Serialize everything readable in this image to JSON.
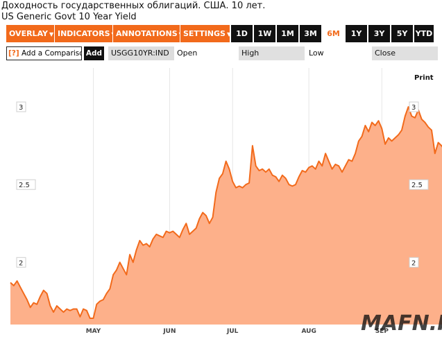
{
  "header": {
    "title_ru": "Доходность государственных облигаций. США. 10 лет.",
    "title_en": "US Generic Govt 10 Year Yield"
  },
  "toolbar": {
    "menus": [
      {
        "label": "OVERLAY",
        "arrow": "▼"
      },
      {
        "label": "INDICATORS",
        "arrow": "▼"
      },
      {
        "label": "ANNOTATIONS",
        "arrow": "▼"
      },
      {
        "label": "SETTINGS",
        "arrow": "▼"
      }
    ],
    "ranges": [
      "1D",
      "1W",
      "1M",
      "3M",
      "6M",
      "1Y",
      "3Y",
      "5Y",
      "YTD"
    ],
    "active_range": "6M"
  },
  "row2": {
    "compare_prefix": "[?]",
    "compare_label": "Add a Comparison",
    "add_label": "Add",
    "ticker": "USGG10YR:IND",
    "open_label": "Open",
    "high_label": "High",
    "low_label": "Low",
    "close_label": "Close"
  },
  "print_label": "Print",
  "watermark": "MAFN.RU",
  "colors": {
    "accent": "#f26a1b",
    "line": "#f26a1b",
    "fill": "#fdb08a"
  },
  "chart_data": {
    "type": "area",
    "title": "US Generic Govt 10 Year Yield",
    "xlabel": "",
    "ylabel": "",
    "ylim": [
      1.6,
      3.25
    ],
    "yticks": [
      2,
      2.5,
      3
    ],
    "ytick_labels": [
      "2",
      "2.5",
      "3"
    ],
    "xticks": [
      {
        "label": "MAY",
        "x": 25
      },
      {
        "label": "JUN",
        "x": 48
      },
      {
        "label": "JUL",
        "x": 67
      },
      {
        "label": "AUG",
        "x": 90
      },
      {
        "label": "SEP",
        "x": 112
      }
    ],
    "xlim": [
      0,
      127
    ],
    "grid": true,
    "y": [
      1.87,
      1.85,
      1.88,
      1.84,
      1.8,
      1.76,
      1.71,
      1.74,
      1.73,
      1.78,
      1.82,
      1.8,
      1.72,
      1.68,
      1.72,
      1.7,
      1.68,
      1.7,
      1.69,
      1.7,
      1.7,
      1.65,
      1.7,
      1.69,
      1.64,
      1.64,
      1.73,
      1.75,
      1.76,
      1.8,
      1.83,
      1.92,
      1.95,
      2.0,
      1.96,
      1.92,
      2.05,
      2.0,
      2.08,
      2.14,
      2.11,
      2.12,
      2.1,
      2.15,
      2.18,
      2.17,
      2.16,
      2.2,
      2.19,
      2.2,
      2.18,
      2.16,
      2.21,
      2.25,
      2.18,
      2.2,
      2.22,
      2.28,
      2.32,
      2.3,
      2.25,
      2.29,
      2.45,
      2.54,
      2.57,
      2.65,
      2.6,
      2.52,
      2.48,
      2.49,
      2.48,
      2.5,
      2.51,
      2.75,
      2.62,
      2.59,
      2.6,
      2.58,
      2.6,
      2.56,
      2.55,
      2.52,
      2.56,
      2.54,
      2.5,
      2.49,
      2.5,
      2.55,
      2.59,
      2.58,
      2.61,
      2.62,
      2.6,
      2.65,
      2.62,
      2.7,
      2.65,
      2.6,
      2.63,
      2.62,
      2.58,
      2.62,
      2.66,
      2.65,
      2.7,
      2.78,
      2.81,
      2.88,
      2.84,
      2.9,
      2.88,
      2.91,
      2.86,
      2.76,
      2.8,
      2.78,
      2.8,
      2.82,
      2.85,
      2.94,
      3.0,
      2.94,
      2.93,
      2.98,
      2.92,
      2.9,
      2.87,
      2.85,
      2.7,
      2.77,
      2.75,
      2.72,
      2.67
    ]
  }
}
